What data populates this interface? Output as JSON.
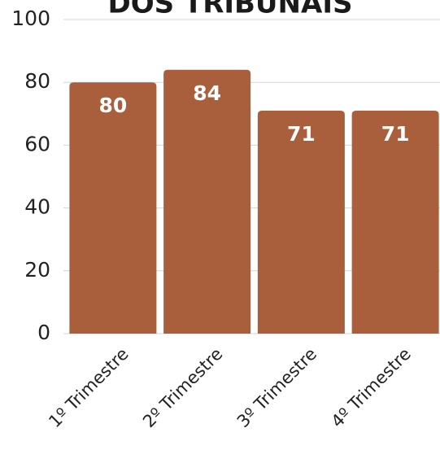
{
  "chart_data": {
    "type": "bar",
    "title": "DOS TRIBUNAIS",
    "categories": [
      "1º Trimestre",
      "2º Trimestre",
      "3º Trimestre",
      "4º Trimestre"
    ],
    "values": [
      80,
      84,
      71,
      71
    ],
    "color": "#a95f3b",
    "ylim": [
      0,
      100
    ],
    "yticks": [
      0,
      20,
      40,
      60,
      80,
      100
    ],
    "grid": true
  }
}
